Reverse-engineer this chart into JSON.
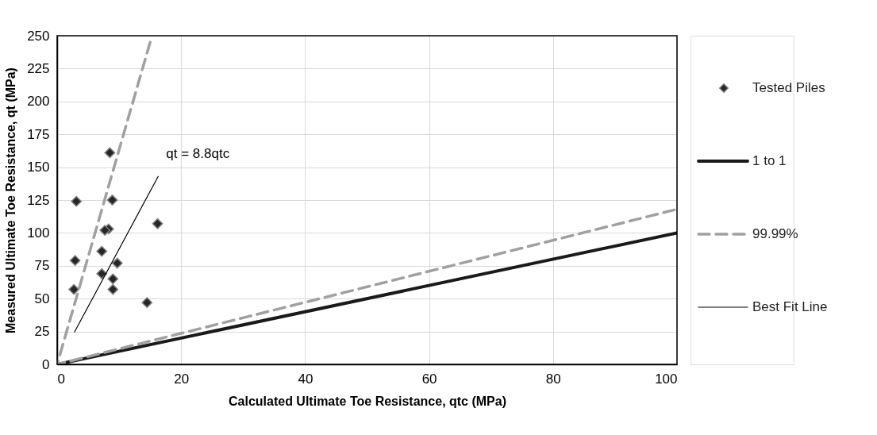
{
  "chart_data": {
    "type": "scatter",
    "xlabel": "Calculated Ultimate Toe Resistance, qtc (MPa)",
    "ylabel": "Measured Ultimate Toe Resistance, qt (MPa)",
    "xlim": [
      0,
      100
    ],
    "xticks": [
      0,
      20,
      40,
      60,
      80,
      100
    ],
    "ylim": [
      0,
      250
    ],
    "yticks": [
      0,
      25,
      50,
      75,
      100,
      125,
      150,
      175,
      200,
      225,
      250
    ],
    "grid": true,
    "legend": "right",
    "annotations": [
      "qt = 8.8qtc"
    ],
    "series": [
      {
        "name": "Tested Piles",
        "marker": "diamond",
        "color": "#262626",
        "x": [
          8.5,
          3.1,
          8.9,
          16.2,
          8.3,
          7.7,
          7.2,
          2.9,
          9.7,
          7.2,
          9.0,
          2.7,
          9.0,
          14.5
        ],
        "values": [
          161,
          124,
          125,
          107,
          103,
          102,
          86,
          79,
          77,
          69,
          65,
          57,
          57,
          47
        ]
      },
      {
        "name": "1 to 1",
        "type": "line",
        "line_style": "solid",
        "color": "#1a1a1a",
        "x": [
          0,
          100
        ],
        "values": [
          0,
          100
        ]
      },
      {
        "name": "99.99%",
        "type": "line",
        "line_style": "dashed",
        "color": "#a0a0a0",
        "x": [
          15,
          0,
          100
        ],
        "values": [
          245,
          0,
          118
        ]
      },
      {
        "name": "Best Fit Line",
        "type": "line",
        "line_style": "solid",
        "color": "#000000",
        "x": [
          2.8,
          16.3
        ],
        "values": [
          24.6,
          143
        ]
      }
    ]
  }
}
